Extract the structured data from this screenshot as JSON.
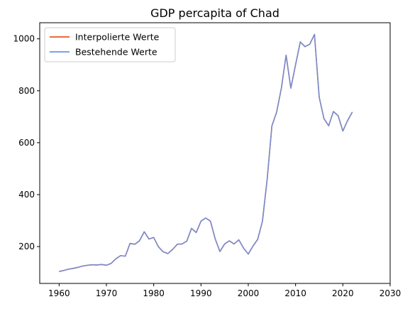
{
  "chart_data": {
    "type": "line",
    "title": "GDP percapita of Chad",
    "xlabel": "",
    "ylabel": "",
    "xlim": [
      1955.9,
      2030
    ],
    "ylim": [
      58,
      1062
    ],
    "xticks": [
      1960,
      1970,
      1980,
      1990,
      2000,
      2010,
      2020,
      2030
    ],
    "yticks": [
      200,
      400,
      600,
      800,
      1000
    ],
    "grid": false,
    "legend": {
      "placement": "top-left"
    },
    "x": [
      1960,
      1961,
      1962,
      1963,
      1964,
      1965,
      1966,
      1967,
      1968,
      1969,
      1970,
      1971,
      1972,
      1973,
      1974,
      1975,
      1976,
      1977,
      1978,
      1979,
      1980,
      1981,
      1982,
      1983,
      1984,
      1985,
      1986,
      1987,
      1988,
      1989,
      1990,
      1991,
      1992,
      1993,
      1994,
      1995,
      1996,
      1997,
      1998,
      1999,
      2000,
      2001,
      2002,
      2003,
      2004,
      2005,
      2006,
      2007,
      2008,
      2009,
      2010,
      2011,
      2012,
      2013,
      2014,
      2015,
      2016,
      2017,
      2018,
      2019,
      2020,
      2021,
      2022
    ],
    "series": [
      {
        "name": "Interpolierte Werte",
        "color": "#e8571c",
        "values": [
          104,
          108,
          113,
          116,
          120,
          125,
          128,
          130,
          129,
          131,
          128,
          135,
          153,
          165,
          163,
          212,
          209,
          222,
          257,
          229,
          235,
          199,
          180,
          173,
          189,
          209,
          210,
          221,
          270,
          254,
          298,
          310,
          298,
          230,
          181,
          210,
          222,
          210,
          226,
          194,
          171,
          202,
          228,
          298,
          460,
          665,
          718,
          810,
          937,
          810,
          900,
          988,
          970,
          979,
          1017,
          775,
          693,
          665,
          720,
          704,
          645,
          685,
          718
        ]
      },
      {
        "name": "Bestehende Werte",
        "color": "#6495ed",
        "values": [
          104,
          108,
          113,
          116,
          120,
          125,
          128,
          130,
          129,
          131,
          128,
          135,
          153,
          165,
          163,
          212,
          209,
          222,
          257,
          229,
          235,
          199,
          180,
          173,
          189,
          209,
          210,
          221,
          270,
          254,
          298,
          310,
          298,
          230,
          181,
          210,
          222,
          210,
          226,
          194,
          171,
          202,
          228,
          298,
          460,
          665,
          718,
          810,
          937,
          810,
          900,
          988,
          970,
          979,
          1017,
          775,
          693,
          665,
          720,
          704,
          645,
          685,
          718
        ]
      }
    ]
  }
}
